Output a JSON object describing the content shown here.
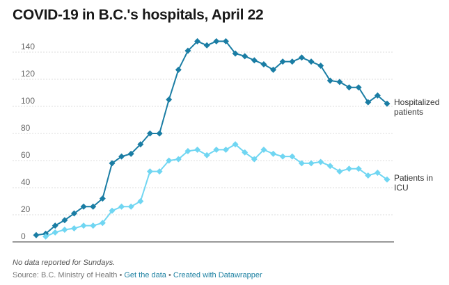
{
  "chart_data": {
    "type": "line",
    "title": "COVID-19 in B.C.'s hospitals, April 22",
    "categories": [
      null,
      null,
      null,
      null,
      null,
      null,
      null,
      null,
      null,
      null,
      null,
      null,
      null,
      null,
      null,
      null,
      null,
      null,
      null,
      null,
      null,
      null,
      null,
      null,
      null,
      null,
      null,
      null,
      null,
      null,
      null,
      null,
      null,
      null,
      null,
      null,
      null,
      null
    ],
    "series": [
      {
        "name": "Hospitalized patients",
        "color": "#1a7da4",
        "values": [
          5,
          6,
          12,
          16,
          21,
          26,
          26,
          32,
          58,
          63,
          65,
          72,
          80,
          80,
          105,
          127,
          141,
          148,
          145,
          148,
          148,
          139,
          137,
          134,
          131,
          127,
          133,
          133,
          136,
          133,
          130,
          119,
          118,
          114,
          114,
          103,
          108,
          102
        ]
      },
      {
        "name": "Patients in ICU",
        "color": "#70d6f2",
        "values": [
          null,
          4,
          7,
          9,
          10,
          12,
          12,
          14,
          23,
          26,
          26,
          30,
          52,
          52,
          60,
          61,
          67,
          68,
          64,
          68,
          68,
          72,
          66,
          61,
          68,
          65,
          63,
          63,
          58,
          58,
          59,
          56,
          52,
          54,
          54,
          49,
          51,
          46
        ]
      }
    ],
    "ylim": [
      0,
      150
    ],
    "yticks": [
      0,
      20,
      40,
      60,
      80,
      100,
      120,
      140
    ],
    "grid": true,
    "note": "No data reported for Sundays.",
    "source": "Source: B.C. Ministry of Health",
    "separator": "•",
    "links": [
      "Get the data",
      "Created with Datawrapper"
    ]
  }
}
